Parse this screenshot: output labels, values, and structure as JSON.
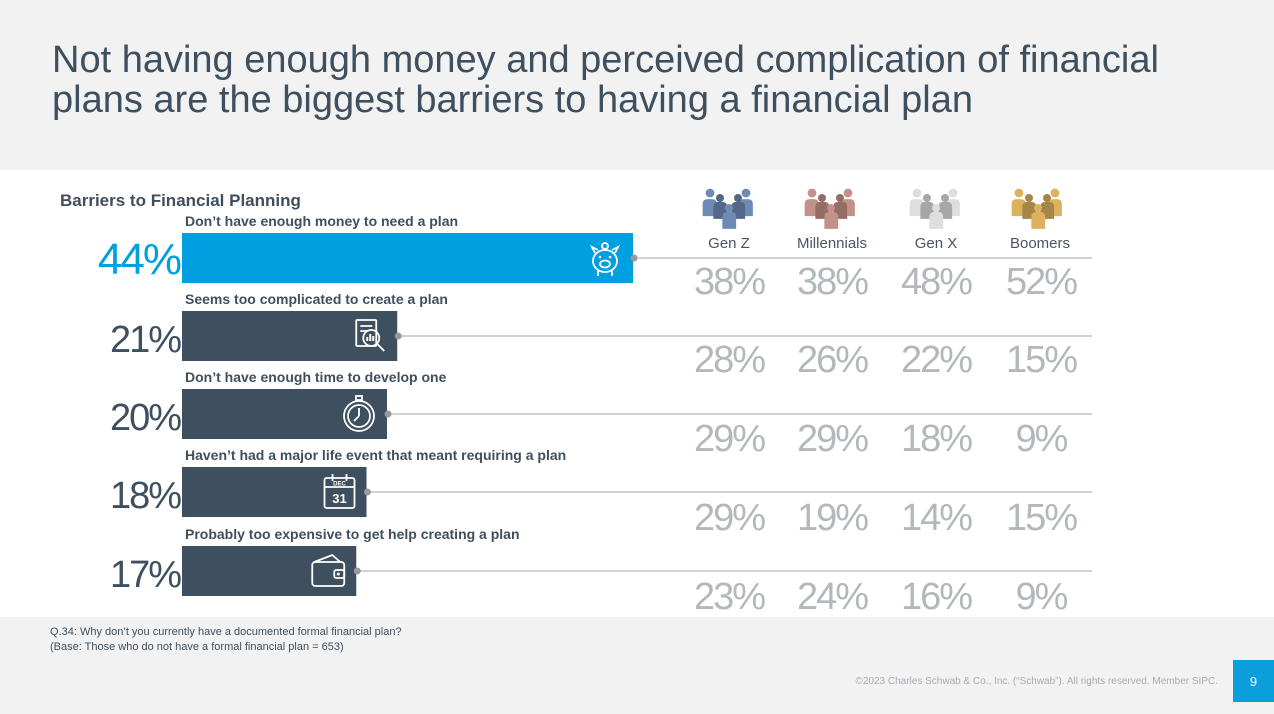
{
  "title": "Not having enough money and perceived complication of financial plans are the biggest barriers to having a financial plan",
  "chart_data": {
    "type": "bar",
    "orientation": "horizontal",
    "title": "Barriers to Financial Planning",
    "categories": [
      "Don’t have enough money to need a plan",
      "Seems too complicated to create a plan",
      "Don’t have enough time to develop one",
      "Haven’t had a major life event that meant requiring a plan",
      "Probably too expensive to get help creating a plan"
    ],
    "values": [
      44,
      21,
      20,
      18,
      17
    ],
    "value_labels": [
      "44%",
      "21%",
      "20%",
      "18%",
      "17%"
    ],
    "icons": [
      "piggy-bank-icon",
      "document-magnifier-icon",
      "stopwatch-icon",
      "calendar-icon",
      "wallet-icon"
    ],
    "calendar_icon_text": {
      "month": "DEC",
      "day": "31"
    },
    "highlight_color": "#009fdf",
    "bar_color": "#3e4f5f",
    "generations": [
      {
        "name": "Gen Z",
        "icon": "people-group-icon",
        "color": "#6f8bb5",
        "labels": [
          "38%",
          "28%",
          "29%",
          "29%",
          "23%"
        ]
      },
      {
        "name": "Millennials",
        "icon": "people-group-icon",
        "color": "#c49188",
        "labels": [
          "38%",
          "26%",
          "29%",
          "19%",
          "24%"
        ]
      },
      {
        "name": "Gen X",
        "icon": "people-group-icon",
        "color": "#dedede",
        "labels": [
          "48%",
          "22%",
          "18%",
          "14%",
          "16%"
        ]
      },
      {
        "name": "Boomers",
        "icon": "people-group-icon",
        "color": "#ddb25e",
        "labels": [
          "52%",
          "15%",
          "9%",
          "15%",
          "9%"
        ]
      }
    ]
  },
  "footnotes": {
    "question": "Q.34:  Why don’t you currently have a documented formal financial plan?",
    "base": "(Base: Those who do not have a formal financial plan = 653)"
  },
  "copyright": "©2023 Charles Schwab & Co., Inc. (“Schwab”). All rights reserved. Member SIPC.",
  "page_number": "9"
}
